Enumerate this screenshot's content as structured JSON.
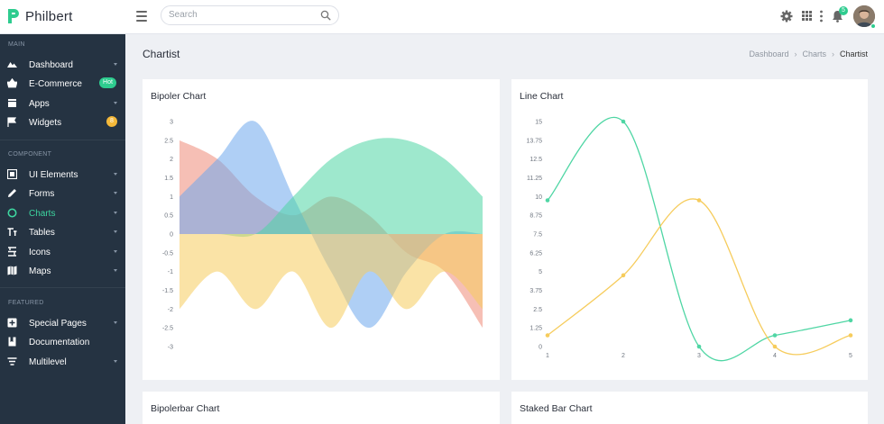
{
  "app": {
    "name": "Philbert"
  },
  "search": {
    "placeholder": "Search"
  },
  "topbar": {
    "notifications_count": "5"
  },
  "sidebar": {
    "sections": [
      {
        "label": "MAIN"
      },
      {
        "label": "COMPONENT"
      },
      {
        "label": "FEATURED"
      }
    ],
    "items": [
      {
        "label": "Dashboard",
        "icon": "dashboard-icon"
      },
      {
        "label": "E-Commerce",
        "icon": "basket-icon",
        "badge": "Hot"
      },
      {
        "label": "Apps",
        "icon": "apps-icon"
      },
      {
        "label": "Widgets",
        "icon": "flag-icon",
        "badge": "8"
      },
      {
        "label": "UI Elements",
        "icon": "ui-elements-icon"
      },
      {
        "label": "Forms",
        "icon": "pencil-icon"
      },
      {
        "label": "Charts",
        "icon": "chart-circle-icon",
        "active": true
      },
      {
        "label": "Tables",
        "icon": "table-icon"
      },
      {
        "label": "Icons",
        "icon": "icons-icon"
      },
      {
        "label": "Maps",
        "icon": "map-icon"
      },
      {
        "label": "Special Pages",
        "icon": "special-pages-icon"
      },
      {
        "label": "Documentation",
        "icon": "book-icon"
      },
      {
        "label": "Multilevel",
        "icon": "multilevel-icon"
      }
    ]
  },
  "page": {
    "title": "Chartist",
    "breadcrumb": [
      "Dashboard",
      "Charts",
      "Chartist"
    ]
  },
  "cards": {
    "bipolar_chart_title": "Bipoler Chart",
    "line_chart_title": "Line Chart",
    "bipolarbar_chart_title": "Bipolerbar Chart",
    "stacked_bar_chart_title": "Staked Bar Chart"
  },
  "colors": {
    "accent": "#2ecc8f",
    "sidebar_bg": "#253342",
    "series_red": "#ef8a79",
    "series_blue": "#6ea8ec",
    "series_green": "#4fd6a4",
    "series_yellow": "#f6cc5c"
  },
  "chart_data": [
    {
      "type": "area",
      "title": "Bipoler Chart",
      "x": [
        1,
        2,
        3,
        4,
        5,
        6,
        7,
        8,
        9
      ],
      "yticks": [
        "3",
        "2.5",
        "2",
        "1.5",
        "1",
        "0.5",
        "0",
        "-0.5",
        "-1",
        "-1.5",
        "-2",
        "-2.5",
        "-3"
      ],
      "ylim": [
        -3,
        3
      ],
      "series": [
        {
          "values": [
            2.5,
            2,
            1,
            0.5,
            1,
            0.5,
            -0.5,
            -1,
            -2.5
          ],
          "color": "#ef8a79"
        },
        {
          "values": [
            1,
            2,
            3,
            1,
            -1,
            -2.5,
            -1,
            0,
            0
          ],
          "color": "#6ea8ec"
        },
        {
          "values": [
            0,
            0,
            0,
            1,
            2,
            2.5,
            2.5,
            2,
            1
          ],
          "color": "#4fd6a4"
        },
        {
          "values": [
            -2,
            -1,
            -2,
            -1,
            -2.5,
            -1,
            -2,
            -1,
            -2
          ],
          "color": "#f6cc5c"
        }
      ]
    },
    {
      "type": "line",
      "title": "Line Chart",
      "x": [
        1,
        2,
        3,
        4,
        5
      ],
      "yticks": [
        "15",
        "13.75",
        "12.5",
        "11.25",
        "10",
        "8.75",
        "7.5",
        "6.25",
        "5",
        "3.75",
        "2.5",
        "1.25",
        "0"
      ],
      "xticks": [
        "1",
        "2",
        "3",
        "4",
        "5"
      ],
      "ylim": [
        0,
        15
      ],
      "series": [
        {
          "values": [
            9.75,
            15,
            0,
            0.75,
            1.75
          ],
          "color": "#4fd6a4"
        },
        {
          "values": [
            0.75,
            4.75,
            9.75,
            0,
            0.75
          ],
          "color": "#f6cc5c"
        }
      ]
    }
  ]
}
